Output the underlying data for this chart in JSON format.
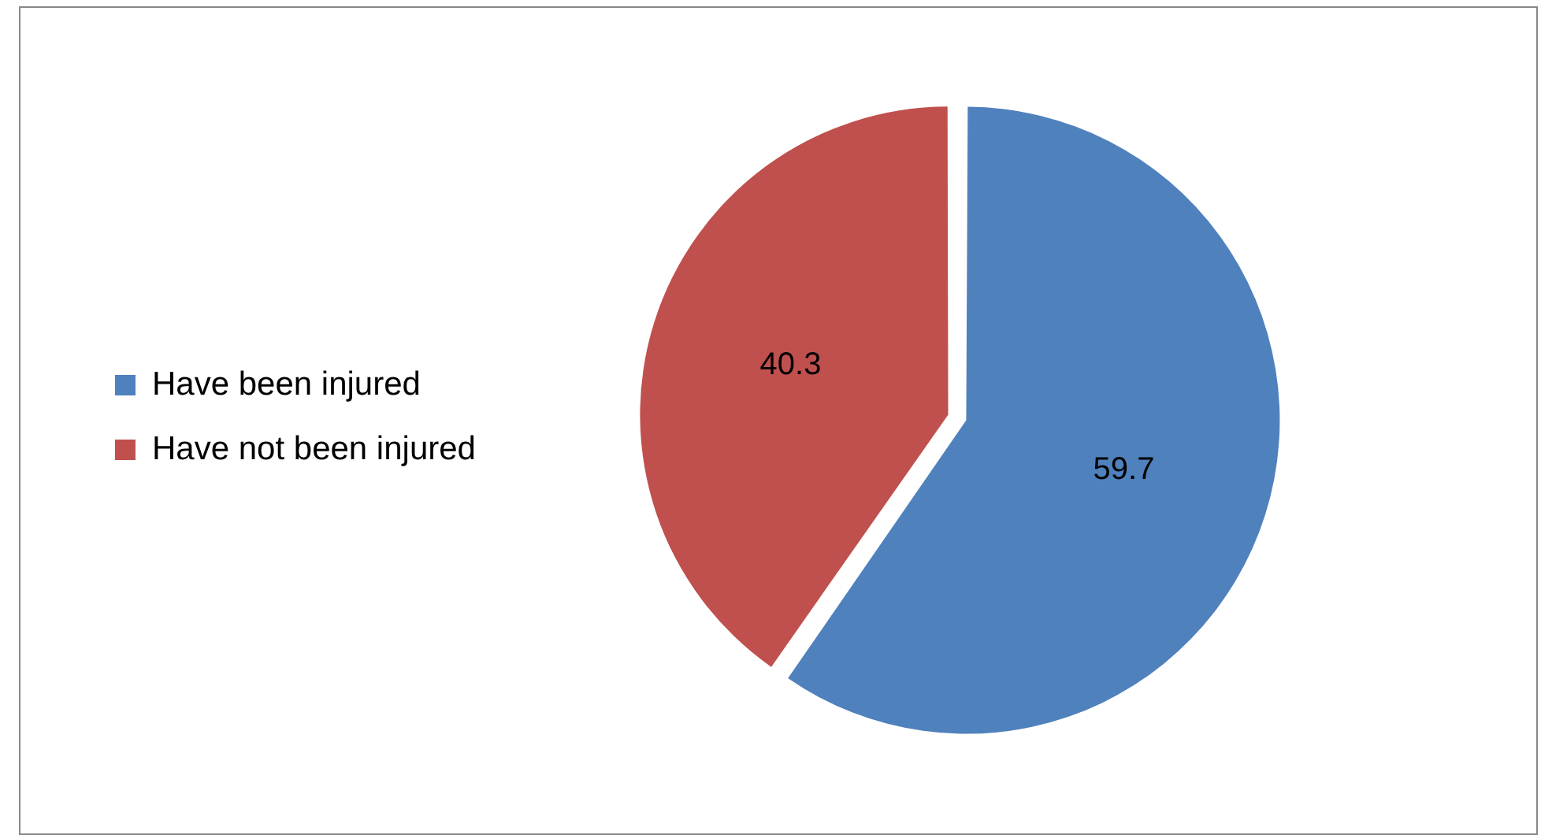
{
  "chart_data": {
    "type": "pie",
    "categories": [
      "Have been injured",
      "Have not been injured"
    ],
    "values": [
      59.7,
      40.3
    ],
    "colors": [
      "#4f81bd",
      "#c0504d"
    ],
    "data_labels": true,
    "legend": "left"
  }
}
